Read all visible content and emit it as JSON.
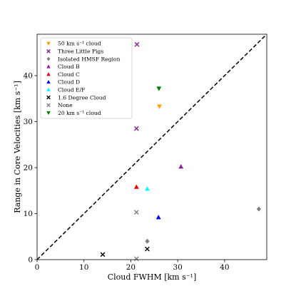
{
  "chart_data": {
    "type": "scatter",
    "xlabel": "Cloud FWHM [km s⁻¹]",
    "ylabel": "Range in Core Velocities [km s⁻¹]",
    "xlim": [
      0,
      49
    ],
    "ylim": [
      0,
      49
    ],
    "x_ticks": [
      0,
      10,
      20,
      30,
      40
    ],
    "y_ticks": [
      0,
      10,
      20,
      30,
      40
    ],
    "grid": false,
    "legend_position": "upper-left",
    "reference_line": {
      "style": "dashed",
      "from": [
        0,
        0
      ],
      "to": [
        49,
        49
      ],
      "color": "#000000"
    },
    "series": [
      {
        "name": "50 km s⁻¹ cloud",
        "marker": "triangle-down",
        "color": "#ff9f00",
        "points": [
          [
            26.1,
            33.3
          ]
        ]
      },
      {
        "name": "Three Little Pigs",
        "marker": "x",
        "color": "#8b1a9c",
        "points": [
          [
            21.3,
            46.8
          ],
          [
            21.2,
            28.5
          ]
        ]
      },
      {
        "name": "Isolated HMSF Region",
        "marker": "diamond",
        "color": "#7f7f7f",
        "points": [
          [
            47.3,
            11.0
          ],
          [
            23.5,
            4.0
          ]
        ]
      },
      {
        "name": "Cloud B",
        "marker": "triangle-up",
        "color": "#8b1a9c",
        "points": [
          [
            30.7,
            20.2
          ]
        ]
      },
      {
        "name": "Cloud C",
        "marker": "triangle-up",
        "color": "#e8000b",
        "points": [
          [
            21.2,
            15.8
          ]
        ]
      },
      {
        "name": "Cloud D",
        "marker": "triangle-up",
        "color": "#0000ff",
        "points": [
          [
            25.9,
            9.2
          ]
        ]
      },
      {
        "name": "Cloud E/F",
        "marker": "triangle-up",
        "color": "#00ffff",
        "points": [
          [
            23.5,
            15.4
          ]
        ]
      },
      {
        "name": "1.6 Degree Cloud",
        "marker": "x",
        "color": "#000000",
        "points": [
          [
            14.0,
            1.1
          ],
          [
            23.5,
            2.3
          ]
        ]
      },
      {
        "name": "None",
        "marker": "x",
        "color": "#7f7f7f",
        "points": [
          [
            21.2,
            10.3
          ],
          [
            21.2,
            0.2
          ]
        ]
      },
      {
        "name": "20 km s⁻¹ cloud",
        "marker": "triangle-down",
        "color": "#008000",
        "points": [
          [
            26.0,
            37.2
          ]
        ]
      }
    ]
  }
}
